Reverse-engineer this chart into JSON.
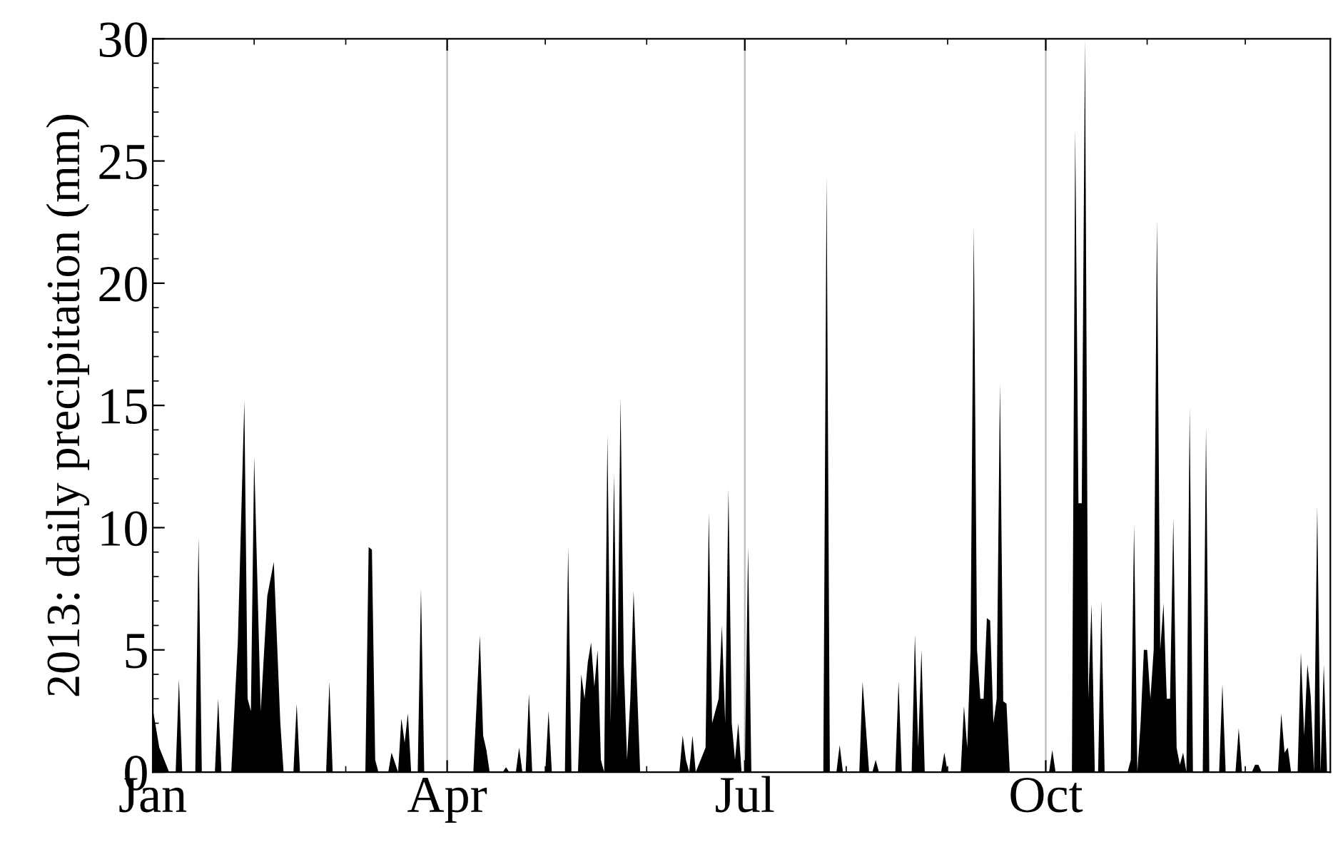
{
  "chart_data": {
    "type": "area",
    "ylabel": "2013: daily precipitation (mm)",
    "xlim": [
      "2013-01-01",
      "2013-12-27"
    ],
    "xticks": [
      {
        "value": "2013-01-01",
        "label": "Jan"
      },
      {
        "value": "2013-04-01",
        "label": "Apr"
      },
      {
        "value": "2013-07-01",
        "label": "Jul"
      },
      {
        "value": "2013-10-01",
        "label": "Oct"
      }
    ],
    "ylim": [
      0,
      30
    ],
    "yticks": [
      0,
      5,
      10,
      15,
      20,
      25,
      30
    ],
    "grid": "x",
    "series": [
      {
        "color": "#000000",
        "x": [
          "2013-01-01",
          "2013-01-03",
          "2013-01-06",
          "2013-01-08",
          "2013-01-09",
          "2013-01-10",
          "2013-01-14",
          "2013-01-15",
          "2013-01-16",
          "2013-01-20",
          "2013-01-21",
          "2013-01-22",
          "2013-01-25",
          "2013-01-27",
          "2013-01-29",
          "2013-01-30",
          "2013-01-31",
          "2013-02-01",
          "2013-02-03",
          "2013-02-05",
          "2013-02-07",
          "2013-02-09",
          "2013-02-10",
          "2013-02-13",
          "2013-02-14",
          "2013-02-15",
          "2013-02-23",
          "2013-02-24",
          "2013-02-25",
          "2013-03-07",
          "2013-03-08",
          "2013-03-09",
          "2013-03-10",
          "2013-03-11",
          "2013-03-14",
          "2013-03-15",
          "2013-03-17",
          "2013-03-18",
          "2013-03-19",
          "2013-03-20",
          "2013-03-21",
          "2013-03-23",
          "2013-03-24",
          "2013-03-25",
          "2013-04-09",
          "2013-04-11",
          "2013-04-12",
          "2013-04-13",
          "2013-04-14",
          "2013-04-18",
          "2013-04-19",
          "2013-04-20",
          "2013-04-22",
          "2013-04-23",
          "2013-04-24",
          "2013-04-25",
          "2013-04-26",
          "2013-04-27",
          "2013-05-01",
          "2013-05-02",
          "2013-05-03",
          "2013-05-07",
          "2013-05-08",
          "2013-05-09",
          "2013-05-11",
          "2013-05-12",
          "2013-05-13",
          "2013-05-14",
          "2013-05-15",
          "2013-05-16",
          "2013-05-17",
          "2013-05-18",
          "2013-05-19",
          "2013-05-20",
          "2013-05-21",
          "2013-05-22",
          "2013-05-23",
          "2013-05-24",
          "2013-05-25",
          "2013-05-26",
          "2013-05-27",
          "2013-05-28",
          "2013-05-30",
          "2013-06-11",
          "2013-06-12",
          "2013-06-13",
          "2013-06-14",
          "2013-06-15",
          "2013-06-16",
          "2013-06-19",
          "2013-06-20",
          "2013-06-21",
          "2013-06-23",
          "2013-06-24",
          "2013-06-25",
          "2013-06-26",
          "2013-06-27",
          "2013-06-28",
          "2013-06-29",
          "2013-06-30",
          "2013-07-01",
          "2013-07-02",
          "2013-07-03",
          "2013-07-25",
          "2013-07-26",
          "2013-07-27",
          "2013-07-29",
          "2013-07-30",
          "2013-07-31",
          "2013-08-05",
          "2013-08-06",
          "2013-08-08",
          "2013-08-09",
          "2013-08-10",
          "2013-08-11",
          "2013-08-16",
          "2013-08-17",
          "2013-08-18",
          "2013-08-21",
          "2013-08-22",
          "2013-08-23",
          "2013-08-24",
          "2013-08-25",
          "2013-08-30",
          "2013-08-31",
          "2013-09-01",
          "2013-09-05",
          "2013-09-06",
          "2013-09-07",
          "2013-09-08",
          "2013-09-09",
          "2013-09-10",
          "2013-09-11",
          "2013-09-12",
          "2013-09-13",
          "2013-09-14",
          "2013-09-15",
          "2013-09-16",
          "2013-09-17",
          "2013-09-18",
          "2013-09-19",
          "2013-09-20",
          "2013-10-02",
          "2013-10-03",
          "2013-10-04",
          "2013-10-09",
          "2013-10-10",
          "2013-10-11",
          "2013-10-12",
          "2013-10-13",
          "2013-10-14",
          "2013-10-15",
          "2013-10-16",
          "2013-10-17",
          "2013-10-18",
          "2013-10-19",
          "2013-10-26",
          "2013-10-27",
          "2013-10-28",
          "2013-10-29",
          "2013-10-30",
          "2013-10-31",
          "2013-11-01",
          "2013-11-02",
          "2013-11-03",
          "2013-11-04",
          "2013-11-05",
          "2013-11-06",
          "2013-11-07",
          "2013-11-08",
          "2013-11-09",
          "2013-11-10",
          "2013-11-11",
          "2013-11-12",
          "2013-11-13",
          "2013-11-14",
          "2013-11-15",
          "2013-11-18",
          "2013-11-19",
          "2013-11-20",
          "2013-11-23",
          "2013-11-24",
          "2013-11-25",
          "2013-11-28",
          "2013-11-29",
          "2013-11-30",
          "2013-12-03",
          "2013-12-04",
          "2013-12-05",
          "2013-12-06",
          "2013-12-11",
          "2013-12-12",
          "2013-12-13",
          "2013-12-14",
          "2013-12-15",
          "2013-12-17",
          "2013-12-18",
          "2013-12-19",
          "2013-12-20",
          "2013-12-21",
          "2013-12-22",
          "2013-12-23",
          "2013-12-24",
          "2013-12-25",
          "2013-12-26"
        ],
        "values": [
          2.6,
          1.0,
          0,
          0,
          3.8,
          0,
          0,
          9.6,
          0,
          0,
          3.0,
          0,
          0,
          5.3,
          15.2,
          3.0,
          2.5,
          12.9,
          2.5,
          7.2,
          8.6,
          2.0,
          0,
          0,
          2.8,
          0,
          0,
          3.7,
          0,
          0,
          9.2,
          9.1,
          0.5,
          0,
          0,
          0.8,
          0,
          2.2,
          1.2,
          2.4,
          0,
          0,
          7.5,
          0,
          0,
          5.6,
          1.5,
          0.9,
          0,
          0,
          0.2,
          0,
          0,
          1.0,
          0,
          0,
          3.2,
          0,
          0,
          2.5,
          0,
          0,
          9.2,
          0,
          0,
          4.0,
          3.0,
          4.5,
          5.3,
          3.5,
          5.0,
          0.5,
          0,
          13.8,
          2.0,
          12.2,
          3.0,
          15.3,
          4.4,
          0.5,
          3.0,
          7.4,
          0,
          0,
          1.5,
          0.5,
          0,
          1.5,
          0,
          1.0,
          10.6,
          2.0,
          3.0,
          6.0,
          2.0,
          11.6,
          2.0,
          0.5,
          2.0,
          0,
          0,
          9.2,
          0,
          0,
          24.4,
          0,
          0,
          1.1,
          0,
          0,
          3.7,
          0,
          0,
          0.5,
          0,
          0,
          3.7,
          0,
          0,
          5.6,
          1.0,
          5.0,
          0,
          0,
          0.8,
          0,
          0,
          2.7,
          1.0,
          5.0,
          22.3,
          5.0,
          3.0,
          3.0,
          6.3,
          6.2,
          2.0,
          3.0,
          15.9,
          2.9,
          2.8,
          0,
          0,
          0.9,
          0,
          0,
          26.3,
          11.0,
          11.0,
          30,
          3.0,
          6.9,
          0,
          0,
          7.0,
          0,
          0,
          0.5,
          10.1,
          0,
          2.0,
          5.0,
          5.0,
          3.0,
          5.0,
          22.6,
          5.0,
          6.9,
          3.0,
          3.0,
          10.4,
          1.0,
          0.3,
          0.8,
          0,
          14.9,
          0,
          0,
          14.1,
          0,
          0,
          3.6,
          0,
          0,
          1.8,
          0,
          0,
          0.3,
          0.3,
          0,
          0,
          2.4,
          0.8,
          1.0,
          0,
          0,
          4.9,
          1.5,
          4.4,
          3.1,
          0,
          10.9,
          0,
          4.4,
          0
        ]
      }
    ]
  }
}
